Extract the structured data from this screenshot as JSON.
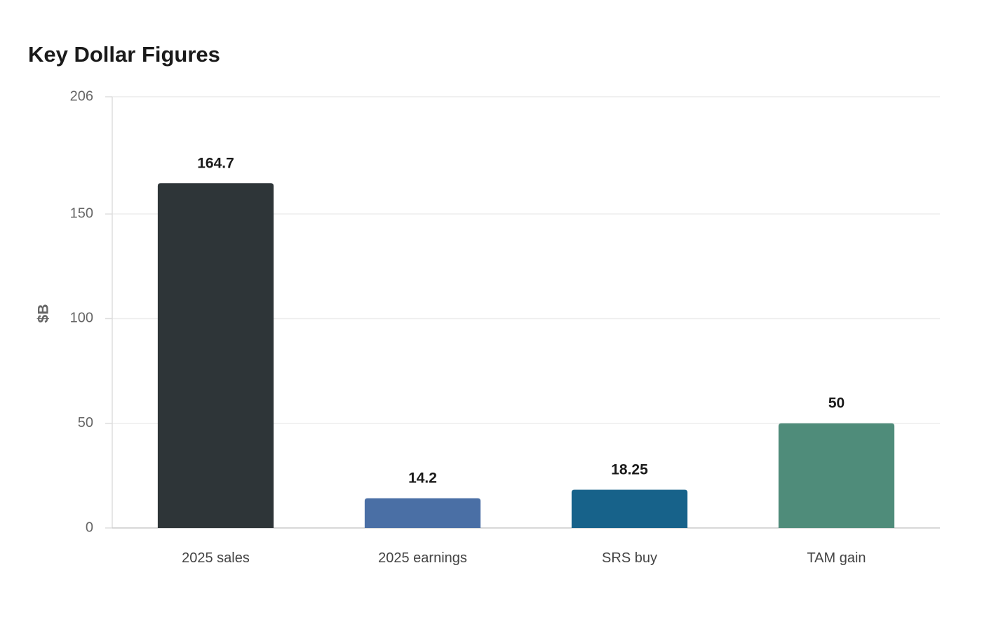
{
  "chart_data": {
    "type": "bar",
    "title": "Key Dollar Figures",
    "xlabel": "",
    "ylabel": "$B",
    "categories": [
      "2025 sales",
      "2025 earnings",
      "SRS buy",
      "TAM gain"
    ],
    "values": [
      164.7,
      14.2,
      18.25,
      50
    ],
    "value_labels": [
      "164.7",
      "14.2",
      "18.25",
      "50"
    ],
    "colors": [
      "#2e3538",
      "#4a6fa5",
      "#17628a",
      "#4f8c7a"
    ],
    "ylim": [
      0,
      206
    ],
    "yticks": [
      0,
      50,
      100,
      150,
      206
    ],
    "ytick_labels": [
      "0",
      "50",
      "100",
      "150",
      "206"
    ],
    "grid": true,
    "legend": "none"
  }
}
